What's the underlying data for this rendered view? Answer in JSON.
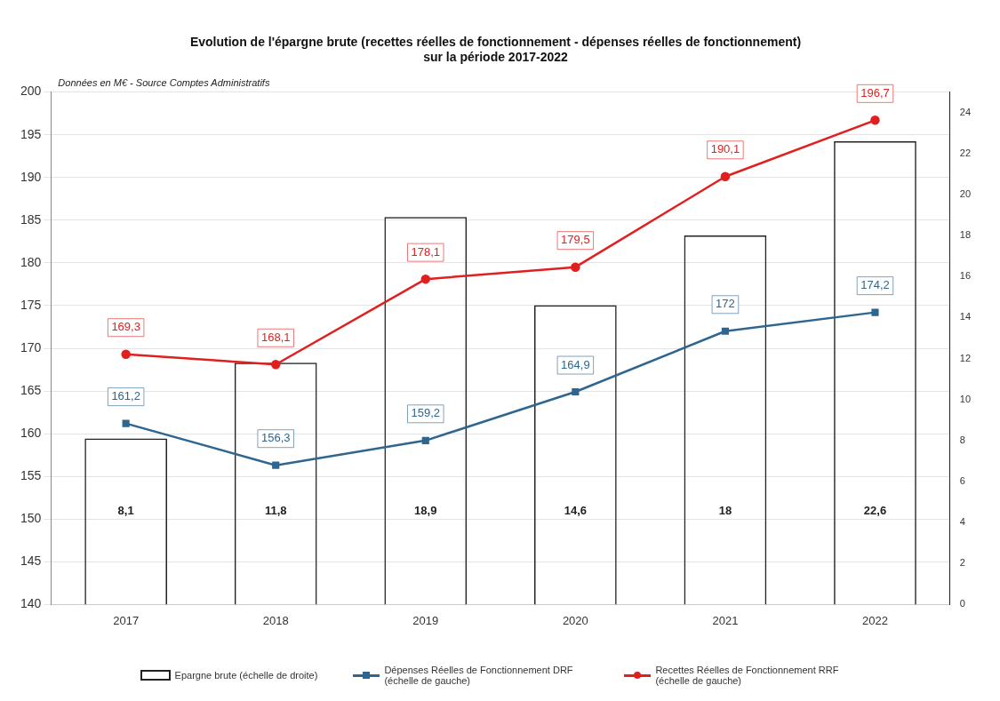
{
  "chart_data": {
    "type": "bar",
    "title": "Evolution de l'épargne brute (recettes réelles de fonctionnement - dépenses réelles de fonctionnement)\nsur la période 2017-2022",
    "annotations": [
      "Données en M€ - Source Comptes Administratifs"
    ],
    "categories": [
      "2017",
      "2018",
      "2019",
      "2020",
      "2021",
      "2022"
    ],
    "series": [
      {
        "name": "Epargne brute (échelle de droite)",
        "axis": "y2",
        "color": "#222222",
        "values": [
          8.1,
          11.8,
          18.9,
          14.6,
          18,
          22.6
        ],
        "value_labels": [
          "8,1",
          "11,8",
          "18,9",
          "14,6",
          "18",
          "22,6"
        ]
      },
      {
        "name": "Dépenses Réelles de Fonctionnement DRF (échelle de gauche)",
        "type": "line",
        "color": "#2e6690",
        "marker": "square",
        "values": [
          161.2,
          156.3,
          159.2,
          164.9,
          172,
          174.2
        ],
        "value_labels": [
          "161,2",
          "156,3",
          "159,2",
          "164,9",
          "172",
          "174,2"
        ]
      },
      {
        "name": "Recettes Réelles de Fonctionnement RRF (échelle de gauche)",
        "type": "line",
        "color": "#e0201f",
        "marker": "circle",
        "values": [
          169.3,
          168.1,
          178.1,
          179.5,
          190.1,
          196.7
        ],
        "value_labels": [
          "169,3",
          "168,1",
          "178,1",
          "179,5",
          "190,1",
          "196,7"
        ]
      }
    ],
    "ylim": [
      140,
      200
    ],
    "yticks": [
      140,
      145,
      150,
      155,
      160,
      165,
      170,
      175,
      180,
      185,
      190,
      195,
      200
    ],
    "y2lim": [
      0,
      25
    ],
    "y2ticks": [
      0,
      2,
      4,
      6,
      8,
      10,
      12,
      14,
      16,
      18,
      20,
      22,
      24
    ],
    "grid": "y",
    "legend": "bottom"
  }
}
